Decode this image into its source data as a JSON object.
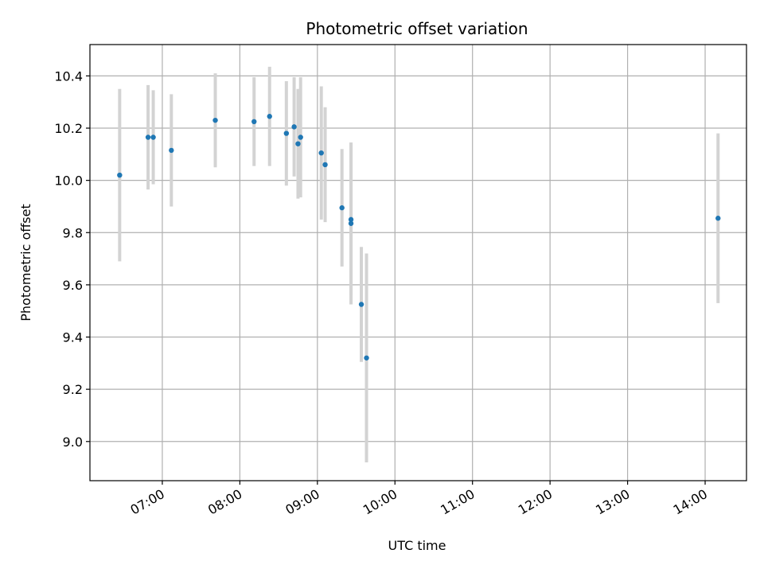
{
  "chart_data": {
    "type": "scatter",
    "title": "Photometric offset variation",
    "xlabel": "UTC time",
    "ylabel": "Photometric offset",
    "x_axis_type": "time",
    "xlim": [
      "06:04",
      "14:32"
    ],
    "ylim": [
      8.85,
      10.52
    ],
    "x_ticks": [
      "07:00",
      "08:00",
      "09:00",
      "10:00",
      "11:00",
      "12:00",
      "13:00",
      "14:00"
    ],
    "y_ticks": [
      9.0,
      9.2,
      9.4,
      9.6,
      9.8,
      10.0,
      10.2,
      10.4
    ],
    "y_tick_labels": [
      "9.0",
      "9.2",
      "9.4",
      "9.6",
      "9.8",
      "10.0",
      "10.2",
      "10.4"
    ],
    "grid": true,
    "x_tick_rotation": 30,
    "marker_color": "#1f77b4",
    "errorbar_color": "#d3d3d3",
    "points": [
      {
        "x": "06:27",
        "y": 10.02,
        "err": 0.33
      },
      {
        "x": "06:49",
        "y": 10.165,
        "err": 0.2
      },
      {
        "x": "06:53",
        "y": 10.165,
        "err": 0.18
      },
      {
        "x": "07:07",
        "y": 10.115,
        "err": 0.215
      },
      {
        "x": "07:41",
        "y": 10.23,
        "err": 0.18
      },
      {
        "x": "08:11",
        "y": 10.225,
        "err": 0.17
      },
      {
        "x": "08:23",
        "y": 10.245,
        "err": 0.19
      },
      {
        "x": "08:36",
        "y": 10.18,
        "err": 0.2
      },
      {
        "x": "08:42",
        "y": 10.205,
        "err": 0.19
      },
      {
        "x": "08:45",
        "y": 10.14,
        "err": 0.21
      },
      {
        "x": "08:47",
        "y": 10.165,
        "err": 0.23
      },
      {
        "x": "09:03",
        "y": 10.105,
        "err": 0.255
      },
      {
        "x": "09:06",
        "y": 10.06,
        "err": 0.22
      },
      {
        "x": "09:19",
        "y": 9.895,
        "err": 0.225
      },
      {
        "x": "09:26",
        "y": 9.85,
        "err": 0.29
      },
      {
        "x": "09:26",
        "y": 9.835,
        "err": 0.31
      },
      {
        "x": "09:34",
        "y": 9.525,
        "err": 0.22
      },
      {
        "x": "09:38",
        "y": 9.32,
        "err": 0.4
      },
      {
        "x": "14:10",
        "y": 9.855,
        "err": 0.325
      }
    ]
  }
}
